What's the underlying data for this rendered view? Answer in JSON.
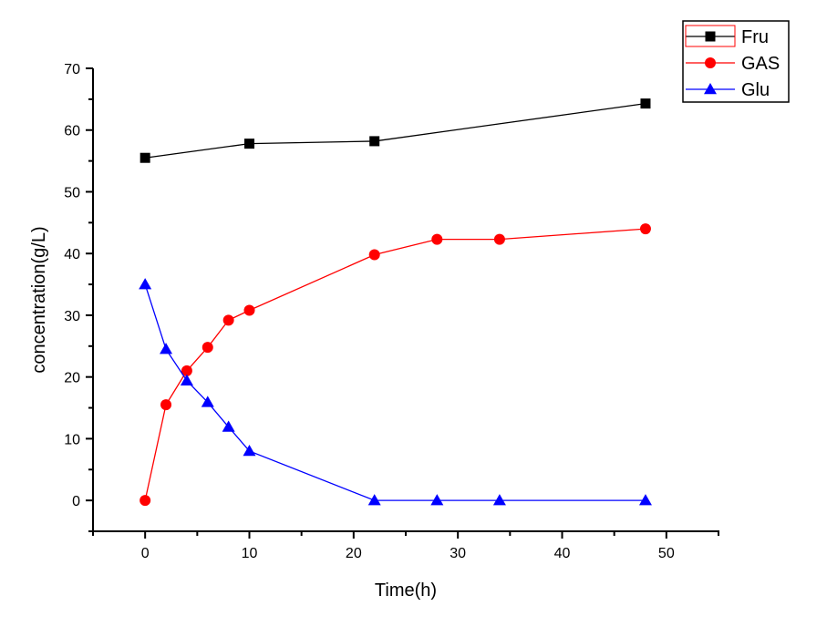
{
  "chart_data": {
    "type": "line",
    "title": "",
    "xlabel": "Time(h)",
    "ylabel": "concentration(g/L)",
    "xlim": [
      -5,
      55
    ],
    "ylim": [
      -5,
      70
    ],
    "xticks": [
      0,
      10,
      20,
      30,
      40,
      50
    ],
    "xtick_labels": [
      "0",
      "10",
      "20",
      "30",
      "40",
      "50"
    ],
    "yticks": [
      0,
      10,
      20,
      30,
      40,
      50,
      60,
      70
    ],
    "ytick_labels": [
      "0",
      "10",
      "20",
      "30",
      "40",
      "50",
      "60",
      "70"
    ],
    "grid": false,
    "legend_position": "top-right",
    "series": [
      {
        "name": "Fru",
        "color": "#000000",
        "marker": "square",
        "x": [
          0,
          10,
          22,
          48
        ],
        "y": [
          55.5,
          57.8,
          58.2,
          64.3
        ]
      },
      {
        "name": "GAS",
        "color": "#ff0000",
        "marker": "circle",
        "x": [
          0,
          2,
          4,
          6,
          8,
          10,
          22,
          28,
          34,
          48
        ],
        "y": [
          0,
          15.5,
          21.0,
          24.8,
          29.2,
          30.8,
          39.8,
          42.3,
          42.3,
          44.0
        ]
      },
      {
        "name": "Glu",
        "color": "#0000ff",
        "marker": "triangle",
        "x": [
          0,
          2,
          4,
          6,
          8,
          10,
          22,
          28,
          34,
          48
        ],
        "y": [
          35.0,
          24.5,
          19.4,
          15.9,
          11.9,
          8.0,
          0,
          0,
          0,
          0
        ]
      }
    ]
  }
}
